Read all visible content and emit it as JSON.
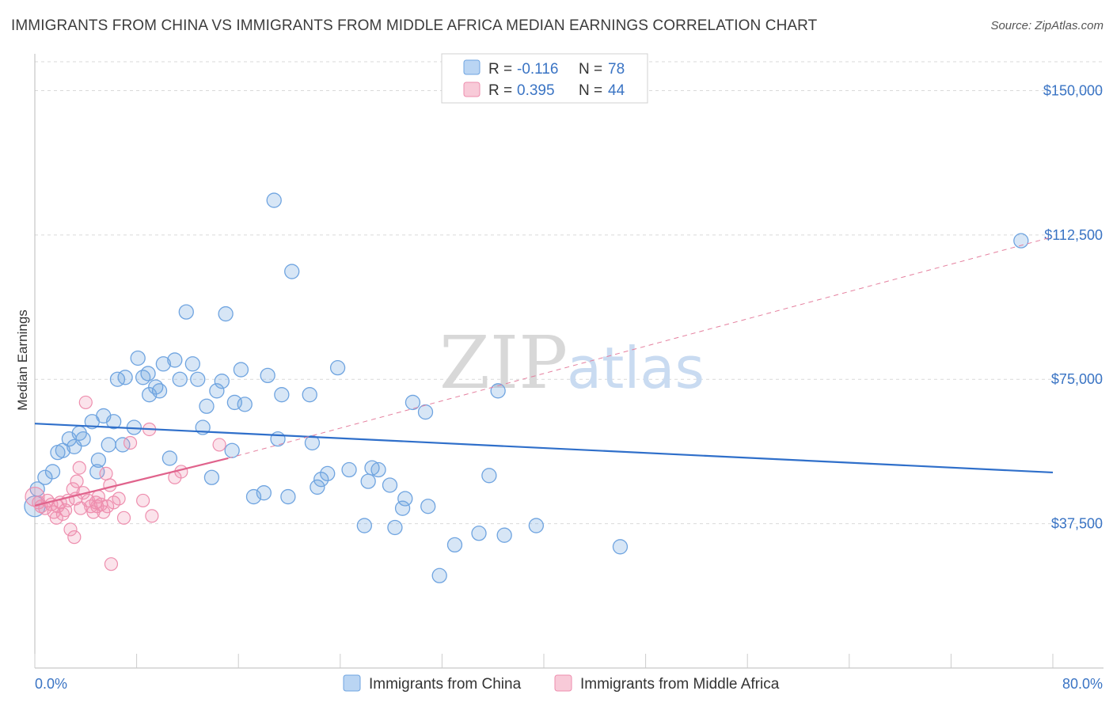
{
  "header": {
    "title": "IMMIGRANTS FROM CHINA VS IMMIGRANTS FROM MIDDLE AFRICA MEDIAN EARNINGS CORRELATION CHART",
    "source": "Source: ZipAtlas.com"
  },
  "watermark": {
    "zip": "ZIP",
    "atlas": "atlas"
  },
  "legend": {
    "rows": [
      {
        "r_label": "R = ",
        "r_value": "-0.116",
        "n_label": "N = ",
        "n_value": "78",
        "color": "#9cc3ee"
      },
      {
        "r_label": "R = ",
        "r_value": "0.395",
        "n_label": "N = ",
        "n_value": "44",
        "color": "#f5b3c8"
      }
    ]
  },
  "chart_data": {
    "type": "scatter",
    "title": "IMMIGRANTS FROM CHINA VS IMMIGRANTS FROM MIDDLE AFRICA MEDIAN EARNINGS CORRELATION CHART",
    "xlabel": "",
    "ylabel": "Median Earnings",
    "xlim": [
      0,
      80
    ],
    "ylim": [
      0,
      157500
    ],
    "x_tick_labels": [
      "0.0%",
      "80.0%"
    ],
    "y_ticks": [
      37500,
      75000,
      112500,
      150000
    ],
    "y_tick_labels": [
      "$37,500",
      "$75,000",
      "$112,500",
      "$150,000"
    ],
    "grid": "horizontal dashed",
    "legend_position": "top-center",
    "series": [
      {
        "name": "Immigrants from China",
        "color": "#6fa4e0",
        "trend": {
          "x": [
            0,
            80
          ],
          "y": [
            63500,
            50800
          ]
        },
        "points": [
          [
            0.0,
            42000
          ],
          [
            0.2,
            46500
          ],
          [
            0.8,
            49500
          ],
          [
            1.4,
            51000
          ],
          [
            1.8,
            56000
          ],
          [
            2.2,
            56500
          ],
          [
            2.7,
            59500
          ],
          [
            3.1,
            57500
          ],
          [
            3.5,
            61000
          ],
          [
            3.8,
            59500
          ],
          [
            4.5,
            64000
          ],
          [
            4.9,
            51000
          ],
          [
            5.0,
            54000
          ],
          [
            5.4,
            65500
          ],
          [
            5.8,
            58000
          ],
          [
            6.2,
            64000
          ],
          [
            6.5,
            75000
          ],
          [
            6.9,
            58000
          ],
          [
            7.1,
            75500
          ],
          [
            7.8,
            62500
          ],
          [
            8.1,
            80500
          ],
          [
            8.5,
            75500
          ],
          [
            8.9,
            76500
          ],
          [
            9.0,
            71000
          ],
          [
            9.5,
            73000
          ],
          [
            9.8,
            72000
          ],
          [
            10.1,
            79000
          ],
          [
            10.6,
            54500
          ],
          [
            11.0,
            80000
          ],
          [
            11.4,
            75000
          ],
          [
            11.9,
            92500
          ],
          [
            12.4,
            79000
          ],
          [
            12.8,
            75000
          ],
          [
            13.2,
            62500
          ],
          [
            13.5,
            68000
          ],
          [
            13.9,
            49500
          ],
          [
            14.3,
            72000
          ],
          [
            14.7,
            74500
          ],
          [
            15.0,
            92000
          ],
          [
            15.5,
            56500
          ],
          [
            15.7,
            69000
          ],
          [
            16.2,
            77500
          ],
          [
            16.5,
            68500
          ],
          [
            17.2,
            44500
          ],
          [
            18.0,
            45500
          ],
          [
            18.3,
            76000
          ],
          [
            18.8,
            121500
          ],
          [
            19.1,
            59500
          ],
          [
            19.4,
            71000
          ],
          [
            19.9,
            44500
          ],
          [
            20.2,
            103000
          ],
          [
            21.6,
            71000
          ],
          [
            21.8,
            58500
          ],
          [
            22.2,
            47000
          ],
          [
            22.5,
            49000
          ],
          [
            23.0,
            50500
          ],
          [
            23.8,
            78000
          ],
          [
            24.7,
            51500
          ],
          [
            25.9,
            37000
          ],
          [
            26.2,
            48500
          ],
          [
            26.5,
            52000
          ],
          [
            27.0,
            51500
          ],
          [
            27.9,
            47500
          ],
          [
            28.3,
            36500
          ],
          [
            28.9,
            41500
          ],
          [
            29.1,
            44000
          ],
          [
            29.7,
            69000
          ],
          [
            30.7,
            66500
          ],
          [
            30.9,
            42000
          ],
          [
            31.8,
            24000
          ],
          [
            33.0,
            32000
          ],
          [
            34.9,
            35000
          ],
          [
            35.7,
            50000
          ],
          [
            36.4,
            72000
          ],
          [
            36.9,
            34500
          ],
          [
            39.4,
            37000
          ],
          [
            46.0,
            31500
          ],
          [
            77.5,
            111000
          ]
        ]
      },
      {
        "name": "Immigrants from Middle Africa",
        "color": "#ee8eae",
        "trend": {
          "x": [
            0,
            15.2
          ],
          "y": [
            42200,
            54500
          ]
        },
        "trend_ext": {
          "x": [
            15.2,
            80
          ],
          "y": [
            54500,
            112000
          ]
        },
        "points": [
          [
            0.0,
            44500
          ],
          [
            0.3,
            43000
          ],
          [
            0.5,
            42000
          ],
          [
            0.8,
            41500
          ],
          [
            1.0,
            43500
          ],
          [
            1.3,
            42500
          ],
          [
            1.5,
            40500
          ],
          [
            1.7,
            39000
          ],
          [
            1.8,
            42000
          ],
          [
            2.0,
            43000
          ],
          [
            2.2,
            40000
          ],
          [
            2.4,
            41000
          ],
          [
            2.6,
            43500
          ],
          [
            2.8,
            36000
          ],
          [
            3.0,
            46500
          ],
          [
            3.1,
            34000
          ],
          [
            3.2,
            44000
          ],
          [
            3.3,
            48500
          ],
          [
            3.5,
            52000
          ],
          [
            3.6,
            41500
          ],
          [
            3.8,
            45500
          ],
          [
            4.0,
            69000
          ],
          [
            4.2,
            43500
          ],
          [
            4.4,
            42000
          ],
          [
            4.6,
            40500
          ],
          [
            4.8,
            43000
          ],
          [
            4.9,
            42000
          ],
          [
            5.0,
            44500
          ],
          [
            5.2,
            42500
          ],
          [
            5.4,
            40500
          ],
          [
            5.6,
            50500
          ],
          [
            5.7,
            42000
          ],
          [
            5.9,
            47500
          ],
          [
            6.0,
            27000
          ],
          [
            6.2,
            43000
          ],
          [
            6.6,
            44000
          ],
          [
            7.0,
            39000
          ],
          [
            7.5,
            58500
          ],
          [
            8.5,
            43500
          ],
          [
            9.0,
            62000
          ],
          [
            9.2,
            39500
          ],
          [
            11.0,
            49500
          ],
          [
            11.5,
            51000
          ],
          [
            14.5,
            58000
          ]
        ]
      }
    ]
  },
  "bottom_legend": {
    "items": [
      {
        "label": "Immigrants from China",
        "color": "#9cc3ee"
      },
      {
        "label": "Immigrants from Middle Africa",
        "color": "#f5b3c8"
      }
    ]
  }
}
